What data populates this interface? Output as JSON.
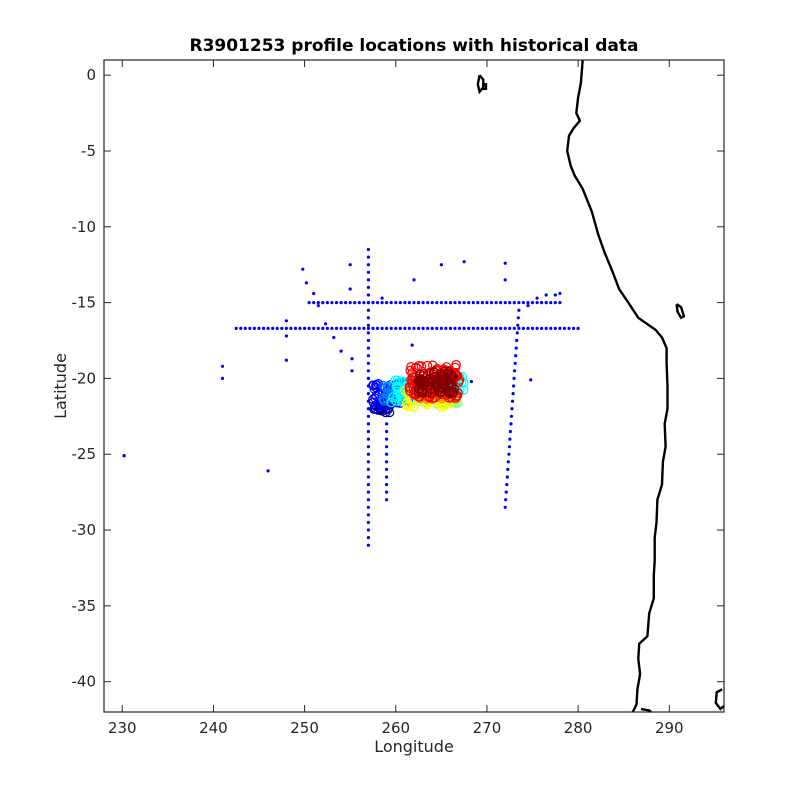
{
  "chart_data": {
    "type": "scatter",
    "title": "R3901253 profile locations with historical data",
    "xlabel": "Longitude",
    "ylabel": "Latitude",
    "xlim": [
      228,
      296
    ],
    "ylim": [
      -42,
      1
    ],
    "xticks": [
      230,
      240,
      250,
      260,
      270,
      280,
      290
    ],
    "yticks": [
      0,
      -5,
      -10,
      -15,
      -20,
      -25,
      -30,
      -35,
      -40
    ],
    "grid": false,
    "legend": "none",
    "colors": {
      "historical": "#0000ff",
      "coastline": "#000000",
      "trajectory_ramp": [
        "#00008f",
        "#0000ff",
        "#0080ff",
        "#00ffff",
        "#80ff80",
        "#ffff00",
        "#ff8000",
        "#ff0000",
        "#800000"
      ]
    },
    "series": [
      {
        "kind": "historical",
        "points": [
          [
            230.2,
            -25.1
          ],
          [
            246.0,
            -26.1
          ],
          [
            241.0,
            -19.2
          ],
          [
            241.0,
            -20.0
          ],
          [
            248.0,
            -16.2
          ],
          [
            248.0,
            -17.2
          ],
          [
            248.0,
            -18.8
          ],
          [
            249.8,
            -12.8
          ],
          [
            250.2,
            -13.7
          ],
          [
            251.0,
            -14.4
          ],
          [
            251.5,
            -15.2
          ],
          [
            252.3,
            -16.4
          ],
          [
            253.2,
            -17.3
          ],
          [
            254.0,
            -18.2
          ],
          [
            255.2,
            -19.5
          ],
          [
            255.2,
            -18.7
          ],
          [
            255.0,
            -12.5
          ],
          [
            255.0,
            -14.1
          ],
          [
            262.0,
            -13.5
          ],
          [
            265.0,
            -12.5
          ],
          [
            267.5,
            -12.3
          ],
          [
            272.0,
            -12.4
          ],
          [
            272.0,
            -13.5
          ],
          [
            261.8,
            -17.8
          ],
          [
            258.5,
            -14.7
          ],
          [
            274.5,
            -15.2
          ],
          [
            275.5,
            -14.7
          ],
          [
            276.5,
            -14.5
          ],
          [
            277.5,
            -14.5
          ],
          [
            278.0,
            -14.4
          ],
          [
            268.3,
            -20.2
          ],
          [
            274.8,
            -20.1
          ]
        ]
      },
      {
        "kind": "trajectory",
        "lon_range": [
          257.0,
          267.5
        ],
        "lat_range": [
          -22.3,
          -19.1
        ]
      }
    ],
    "tracks": [
      {
        "from": [
          242.5,
          -16.7
        ],
        "to": [
          280.0,
          -16.7
        ]
      },
      {
        "from": [
          257.0,
          -11.5
        ],
        "to": [
          257.0,
          -31.0
        ]
      },
      {
        "from": [
          250.5,
          -15.0
        ],
        "to": [
          278.0,
          -15.0
        ]
      },
      {
        "from": [
          259.0,
          -23.0
        ],
        "to": [
          259.0,
          -28.0
        ]
      },
      {
        "from": [
          273.5,
          -15.5
        ],
        "to": [
          272.0,
          -28.5
        ]
      }
    ]
  }
}
